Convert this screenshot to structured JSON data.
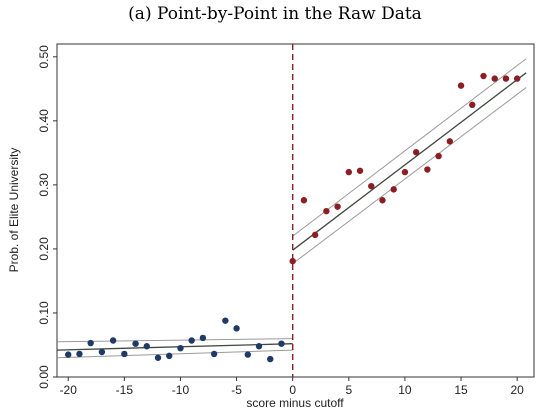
{
  "chart_data": {
    "type": "scatter",
    "title": "(a) Point-by-Point in the Raw Data",
    "xlabel": "score minus cutoff",
    "ylabel": "Prob. of Elite University",
    "xlim": [
      -21,
      21.5
    ],
    "ylim": [
      0,
      0.52
    ],
    "xticks": [
      "-20",
      "-15",
      "-10",
      "-5",
      "0",
      "5",
      "10",
      "15",
      "20"
    ],
    "yticks": [
      "0.00",
      "0.10",
      "0.20",
      "0.30",
      "0.40",
      "0.50"
    ],
    "grid": false,
    "cutoff": 0,
    "colors": {
      "left_points": "#1f3a66",
      "right_points": "#8b1e24",
      "fit_line": "#3d4a3d",
      "ci_line": "#9a9a9a",
      "cutoff_line": "#8b1e24",
      "axis": "#333333"
    },
    "series": [
      {
        "side": "left",
        "x": [
          -20,
          -19,
          -18,
          -17,
          -16,
          -15,
          -14,
          -13,
          -12,
          -11,
          -10,
          -9,
          -8,
          -7,
          -6,
          -5,
          -4,
          -3,
          -2,
          -1
        ],
        "y": [
          0.035,
          0.036,
          0.053,
          0.039,
          0.057,
          0.036,
          0.052,
          0.048,
          0.03,
          0.033,
          0.045,
          0.057,
          0.061,
          0.036,
          0.088,
          0.076,
          0.035,
          0.048,
          0.028,
          0.052
        ]
      },
      {
        "side": "right",
        "x": [
          0,
          1,
          2,
          3,
          4,
          5,
          6,
          7,
          8,
          9,
          10,
          11,
          12,
          13,
          14,
          15,
          16,
          17,
          18,
          19,
          20
        ],
        "y": [
          0.181,
          0.276,
          0.222,
          0.259,
          0.266,
          0.32,
          0.322,
          0.298,
          0.276,
          0.293,
          0.32,
          0.351,
          0.324,
          0.345,
          0.368,
          0.455,
          0.425,
          0.47,
          0.466,
          0.466,
          0.466
        ]
      }
    ],
    "fits": [
      {
        "side": "left",
        "x": [
          -21,
          0
        ],
        "y": [
          0.042,
          0.052
        ],
        "ci_upper": [
          0.055,
          0.06
        ],
        "ci_lower": [
          0.03,
          0.042
        ]
      },
      {
        "side": "right",
        "x": [
          0,
          20.8
        ],
        "y": [
          0.198,
          0.475
        ],
        "ci_upper": [
          0.22,
          0.497
        ],
        "ci_lower": [
          0.177,
          0.452
        ]
      }
    ]
  }
}
